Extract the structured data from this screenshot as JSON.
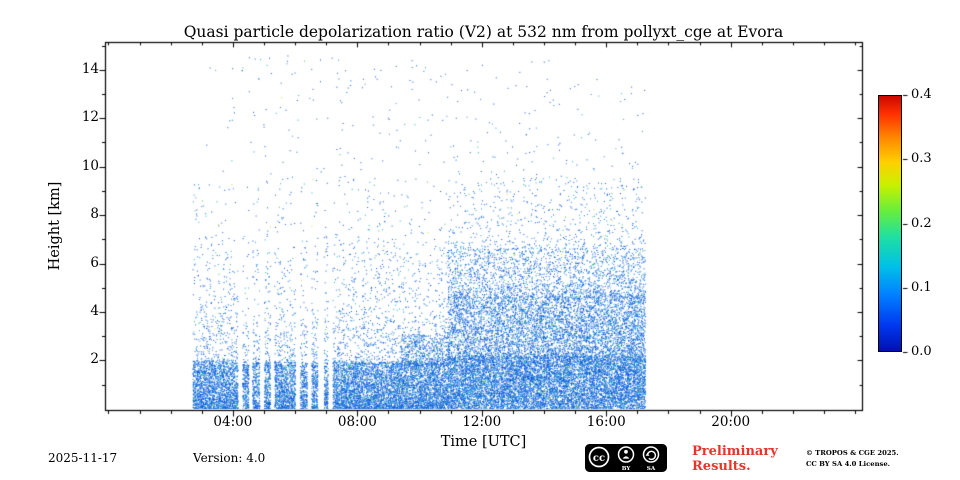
{
  "colors": {
    "background": "#ffffff",
    "axis": "#000000",
    "point_blue": "#1064d8",
    "preliminary_red": "#e8352b"
  },
  "footer": {
    "date": "2025-11-17",
    "version_label": "Version: 4.0",
    "preliminary_line1": "Preliminary",
    "preliminary_line2": "Results.",
    "copyright_line1": "© TROPOS & CGE 2025.",
    "copyright_line2": "CC BY SA 4.0 License.",
    "badge": {
      "cc_label": "cc",
      "by_label": "BY",
      "sa_label": "SA"
    }
  },
  "chart_data": {
    "type": "scatter",
    "title": "Quasi particle depolarization ratio (V2) at 532 nm from pollyxt_cge at Evora",
    "xlabel": "Time [UTC]",
    "ylabel": "Height [km]",
    "xlim_hours": [
      0,
      24
    ],
    "ylim_km": [
      0,
      15.1
    ],
    "grid": false,
    "x_ticks": [
      {
        "hour": 4,
        "label": "04:00"
      },
      {
        "hour": 8,
        "label": "08:00"
      },
      {
        "hour": 12,
        "label": "12:00"
      },
      {
        "hour": 16,
        "label": "16:00"
      },
      {
        "hour": 20,
        "label": "20:00"
      }
    ],
    "x_minor_step_hours": 1,
    "y_ticks": [
      2,
      4,
      6,
      8,
      10,
      12,
      14
    ],
    "y_minor_step_km": 1,
    "colorbar": {
      "min": 0.0,
      "max": 0.4,
      "ticks": [
        "0.4",
        "0.3",
        "0.2",
        "0.1",
        "0.0"
      ],
      "colormap": "jet",
      "position": "right"
    },
    "coverage_hours": [
      2.7,
      17.25
    ],
    "notes": "Dense low depolarization (blue, ~0.0-0.1) aerosol band below ~2 km all day; boundary layer deepens to ~6-7 km after ~11:00 UTC; sparse noise speckle up to ~14.5 km; vertical measurement gaps between ~04:10 and ~07:15 UTC; no data before 02:40 or after 17:15 UTC.",
    "data_gaps_hours": [
      [
        4.15,
        4.3
      ],
      [
        4.5,
        4.62
      ],
      [
        4.85,
        5.0
      ],
      [
        5.2,
        5.33
      ],
      [
        6.0,
        6.15
      ],
      [
        6.38,
        6.52
      ],
      [
        6.72,
        6.92
      ],
      [
        7.05,
        7.2
      ]
    ],
    "point_palette": {
      "colors": [
        "#0a52d8",
        "#1166e2",
        "#2b8ce0",
        "#17b0ca",
        "#35c35f",
        "#d8d832"
      ],
      "weights": [
        0.42,
        0.3,
        0.15,
        0.09,
        0.03,
        0.01
      ]
    },
    "regions": [
      {
        "t0": 2.7,
        "t1": 10.9,
        "h0": 0.0,
        "h1": 1.95,
        "density": 0.9,
        "bias": 1.25,
        "gaps": true
      },
      {
        "t0": 2.7,
        "t1": 10.9,
        "h0": 1.95,
        "h1": 3.6,
        "density": 0.12,
        "bias": 1.35,
        "gaps": true
      },
      {
        "t0": 2.7,
        "t1": 10.9,
        "h0": 3.6,
        "h1": 6.6,
        "density": 0.05,
        "bias": 1.25,
        "gaps": true
      },
      {
        "t0": 2.7,
        "t1": 10.9,
        "h0": 6.6,
        "h1": 9.6,
        "density": 0.016,
        "bias": 1.2,
        "gaps": true
      },
      {
        "t0": 2.7,
        "t1": 10.9,
        "h0": 9.6,
        "h1": 14.6,
        "density": 0.004,
        "bias": 1.0,
        "gaps": false
      },
      {
        "t0": 9.4,
        "t1": 10.9,
        "h0": 1.8,
        "h1": 3.1,
        "density": 0.3,
        "bias": 1.3,
        "gaps": false
      },
      {
        "t0": 10.9,
        "t1": 17.25,
        "h0": 0.0,
        "h1": 2.2,
        "density": 0.9,
        "bias": 1.0,
        "gaps": false
      },
      {
        "t0": 10.9,
        "t1": 17.25,
        "h0": 2.2,
        "h1": 4.6,
        "density": 0.45,
        "bias": 1.1,
        "gaps": false
      },
      {
        "t0": 10.9,
        "t1": 17.25,
        "h0": 4.6,
        "h1": 6.6,
        "density": 0.22,
        "bias": 1.4,
        "gaps": false
      },
      {
        "t0": 10.9,
        "t1": 17.25,
        "h0": 6.6,
        "h1": 9.6,
        "density": 0.045,
        "bias": 1.5,
        "gaps": false
      },
      {
        "t0": 10.9,
        "t1": 17.25,
        "h0": 9.6,
        "h1": 13.5,
        "density": 0.006,
        "bias": 1.0,
        "gaps": false
      },
      {
        "t0": 2.7,
        "t1": 17.25,
        "h0": 13.5,
        "h1": 14.6,
        "density": 0.002,
        "bias": 1.0,
        "gaps": false
      }
    ]
  }
}
